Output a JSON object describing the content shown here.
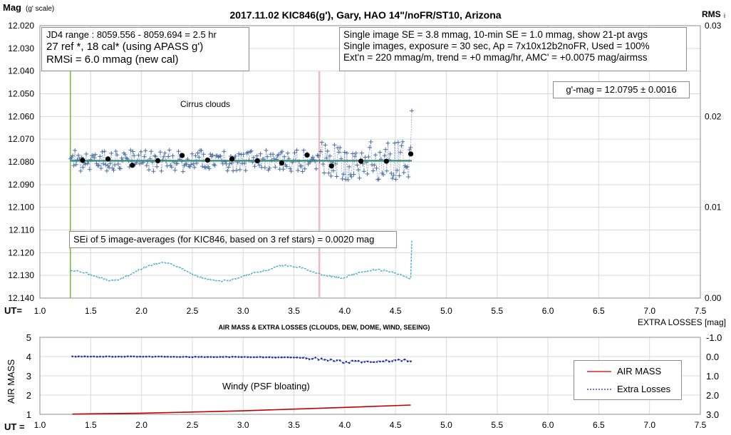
{
  "chart_data": [
    {
      "type": "scatter",
      "title": "2017.11.02  KIC846(g'),  Gary, HAO 14\"/noFR/ST10,  Arizona",
      "ylabel_main": "Mag",
      "ylabel_sub": "(g' scale)",
      "y2label_main": "RMS",
      "y2label_sub": "i",
      "xlabel": "UT=",
      "xlim": [
        1.0,
        7.5
      ],
      "ylim": [
        12.02,
        12.14
      ],
      "y_inverted": true,
      "y2lim": [
        0.0,
        0.03
      ],
      "grid": true,
      "x_ticks": [
        "1.0",
        "1.5",
        "2.0",
        "2.5",
        "3.0",
        "3.5",
        "4.0",
        "4.5",
        "5.0",
        "5.5",
        "6.0",
        "6.5",
        "7.0",
        "7.5"
      ],
      "y_ticks": [
        "12.020",
        "12.030",
        "12.040",
        "12.050",
        "12.060",
        "12.070",
        "12.080",
        "12.090",
        "12.100",
        "12.110",
        "12.120",
        "12.130",
        "12.140"
      ],
      "y2_ticks": [
        "0.00",
        "0.01",
        "0.02",
        "0.03"
      ],
      "info_box_left": [
        "JD4 range : 8059.556 - 8059.694 =  2.5  hr",
        "27 ref *, 18 cal* (using APASS g')",
        "RMSi = 6.0 mmag (new cal)"
      ],
      "info_box_right": [
        "Single image SE = 3.8 mmag, 10-min SE = 1.0 mmag, show  21-pt avgs",
        "Single images, exposure = 30 sec, Ap = 7x10x12b2noFR,  Used = 100%",
        "Ext'n = 220 mmag/m, trend =  +0 mmag/hr, AMC' = +0.0075 mag/airmss"
      ],
      "mag_box": "g'-mag = 12.0795 ± 0.0016",
      "annotation_clouds": "Cirrus clouds",
      "annotation_sei": "SEi of 5 image-averages (for KIC846, based on 3 ref stars) = 0.0020  mag",
      "green_line_x": 1.3,
      "pink_line_x": 3.75,
      "mean_mag": 12.0795,
      "averages": {
        "x": [
          1.42,
          1.67,
          1.91,
          2.16,
          2.4,
          2.65,
          2.89,
          3.14,
          3.38,
          3.63,
          3.87,
          4.16,
          4.41,
          4.65
        ],
        "y": [
          12.0793,
          12.0787,
          12.0815,
          12.0795,
          12.0772,
          12.0792,
          12.0787,
          12.0795,
          12.0805,
          12.077,
          12.0818,
          12.0797,
          12.0797,
          12.0765
        ]
      },
      "colors": {
        "points": "#4a6fa5",
        "averages": "#000000",
        "rms": "#4bacc6",
        "green_line": "#7dbe3c",
        "pink_line": "#f4b6c2",
        "mean_line": "#3a8a78"
      }
    },
    {
      "type": "line",
      "title": "AIR MASS & EXTRA LOSSES (CLOUDS, DEW, DOME, WIND, SEEING)",
      "ylabel": "AIR MASS",
      "y2label": "EXTRA LOSSES [mag]",
      "xlabel": "UT =",
      "xlim": [
        1.0,
        7.5
      ],
      "ylim": [
        1,
        5
      ],
      "y2lim": [
        -1.0,
        3.0
      ],
      "y2_inverted": true,
      "grid": true,
      "x_ticks": [
        "1.0",
        "1.5",
        "2.0",
        "2.5",
        "3.0",
        "3.5",
        "4.0",
        "4.5",
        "5.0",
        "5.5",
        "6.0",
        "6.5",
        "7.0",
        "7.5"
      ],
      "y_ticks": [
        "1",
        "2",
        "3",
        "4",
        "5"
      ],
      "y2_ticks": [
        "-1.0",
        "0.0",
        "1.0",
        "2.0",
        "3.0"
      ],
      "annotation": "Windy (PSF bloating)",
      "series": [
        {
          "name": "AIR MASS",
          "x": [
            1.32,
            2.0,
            2.5,
            3.0,
            3.5,
            4.0,
            4.65
          ],
          "y": [
            1.01,
            1.06,
            1.12,
            1.18,
            1.27,
            1.36,
            1.48
          ],
          "color": "#c00000"
        },
        {
          "name": "Extra Losses",
          "x": [
            1.32,
            2.0,
            2.5,
            3.0,
            3.5,
            3.75,
            3.9,
            4.0,
            4.1,
            4.3,
            4.5,
            4.65
          ],
          "y": [
            0.0,
            0.0,
            0.02,
            0.02,
            0.05,
            0.12,
            0.2,
            0.3,
            0.25,
            0.28,
            0.18,
            0.22
          ],
          "color": "#1f2bb0"
        }
      ],
      "legend": "right"
    }
  ]
}
